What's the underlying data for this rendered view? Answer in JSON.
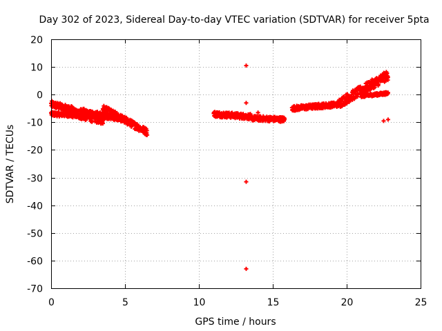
{
  "chart_data": {
    "type": "scatter",
    "title": "Day 302 of 2023, Sidereal Day-to-day VTEC variation (SDTVAR) for receiver 5pta",
    "xlabel": "GPS time / hours",
    "ylabel": "SDTVAR / TECUs",
    "xlim": [
      0,
      25
    ],
    "ylim": [
      -70,
      20
    ],
    "xticks": [
      0,
      5,
      10,
      15,
      20,
      25
    ],
    "yticks": [
      -70,
      -60,
      -50,
      -40,
      -30,
      -20,
      -10,
      0,
      10,
      20
    ],
    "grid": true,
    "marker": "plus",
    "color": "#ff0000",
    "series": [
      {
        "name": "SDTVAR",
        "segments": [
          {
            "x0": 0.0,
            "x1": 1.5,
            "y0": -3.5,
            "y1": -5.5,
            "band": 2.5
          },
          {
            "x0": 0.0,
            "x1": 2.0,
            "y0": -7.0,
            "y1": -7.5,
            "band": 1.5
          },
          {
            "x0": 1.0,
            "x1": 3.5,
            "y0": -6.0,
            "y1": -9.0,
            "band": 3.5
          },
          {
            "x0": 2.0,
            "x1": 3.5,
            "y0": -5.5,
            "y1": -8.5,
            "band": 2.0
          },
          {
            "x0": 3.0,
            "x1": 5.0,
            "y0": -7.0,
            "y1": -9.0,
            "band": 2.0
          },
          {
            "x0": 3.5,
            "x1": 6.5,
            "y0": -5.0,
            "y1": -13.5,
            "band": 2.5
          },
          {
            "x0": 11.0,
            "x1": 13.5,
            "y0": -7.0,
            "y1": -8.0,
            "band": 2.0
          },
          {
            "x0": 13.5,
            "x1": 15.8,
            "y0": -8.5,
            "y1": -9.0,
            "band": 1.8
          },
          {
            "x0": 16.3,
            "x1": 19.5,
            "y0": -5.0,
            "y1": -3.5,
            "band": 1.8
          },
          {
            "x0": 19.5,
            "x1": 22.8,
            "y0": -3.0,
            "y1": 7.0,
            "band": 3.5
          },
          {
            "x0": 21.0,
            "x1": 22.8,
            "y0": -0.5,
            "y1": 0.5,
            "band": 1.0
          }
        ],
        "isolated_points": [
          {
            "x": 13.2,
            "y": 10.5
          },
          {
            "x": 13.2,
            "y": -3.0
          },
          {
            "x": 13.2,
            "y": -31.5
          },
          {
            "x": 13.2,
            "y": -63.0
          },
          {
            "x": 22.5,
            "y": -9.5
          },
          {
            "x": 22.8,
            "y": -9.0
          },
          {
            "x": 14.0,
            "y": -6.5
          },
          {
            "x": 3.8,
            "y": -5.0
          }
        ]
      }
    ]
  }
}
